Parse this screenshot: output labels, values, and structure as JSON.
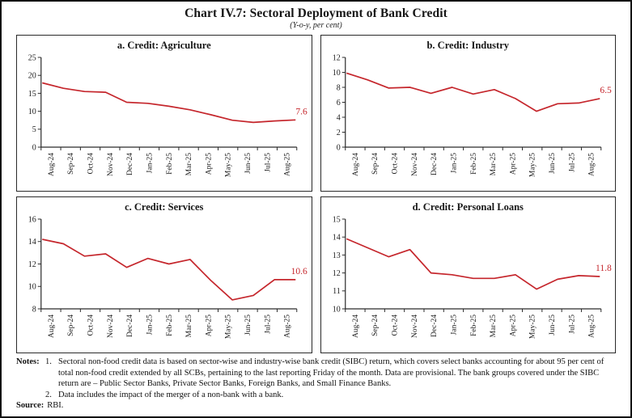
{
  "header": {
    "title": "Chart IV.7:  Sectoral Deployment of Bank Credit",
    "subtitle": "(Y-o-y, per cent)"
  },
  "colors": {
    "line_red": "#c5262c",
    "axis": "#2b2b2b",
    "border": "#121212"
  },
  "chart_data": [
    {
      "type": "line",
      "title": "a. Credit: Agriculture",
      "categories": [
        "Aug-24",
        "Sep-24",
        "Oct-24",
        "Nov-24",
        "Dec-24",
        "Jan-25",
        "Feb-25",
        "Mar-25",
        "Apr-25",
        "May-25",
        "Jun-25",
        "Jul-25",
        "Aug-25"
      ],
      "values": [
        17.9,
        16.4,
        15.5,
        15.3,
        12.5,
        12.2,
        11.4,
        10.4,
        9.0,
        7.5,
        6.9,
        7.3,
        7.6
      ],
      "ylim": [
        0,
        25
      ],
      "yticks": [
        0,
        5,
        10,
        15,
        20,
        25
      ],
      "end_label": "7.6",
      "line_color": "#c5262c",
      "legend": "none",
      "grid": "off"
    },
    {
      "type": "line",
      "title": "b. Credit: Industry",
      "categories": [
        "Aug-24",
        "Sep-24",
        "Oct-24",
        "Nov-24",
        "Dec-24",
        "Jan-25",
        "Feb-25",
        "Mar-25",
        "Apr-25",
        "May-25",
        "Jun-25",
        "Jul-25",
        "Aug-25"
      ],
      "values": [
        9.9,
        9.0,
        7.9,
        8.0,
        7.2,
        8.0,
        7.1,
        7.7,
        6.5,
        4.8,
        5.8,
        5.9,
        6.5
      ],
      "ylim": [
        0,
        12
      ],
      "yticks": [
        0,
        2,
        4,
        6,
        8,
        10,
        12
      ],
      "end_label": "6.5",
      "line_color": "#c5262c",
      "legend": "none",
      "grid": "off"
    },
    {
      "type": "line",
      "title": "c. Credit: Services",
      "categories": [
        "Aug-24",
        "Sep-24",
        "Oct-24",
        "Nov-24",
        "Dec-24",
        "Jan-25",
        "Feb-25",
        "Mar-25",
        "Apr-25",
        "May-25",
        "Jun-25",
        "Jul-25",
        "Aug-25"
      ],
      "values": [
        14.2,
        13.8,
        12.7,
        12.9,
        11.7,
        12.5,
        12.0,
        12.4,
        10.5,
        8.8,
        9.2,
        10.6,
        10.6
      ],
      "ylim": [
        8,
        16
      ],
      "yticks": [
        8,
        10,
        12,
        14,
        16
      ],
      "end_label": "10.6",
      "line_color": "#c5262c",
      "legend": "none",
      "grid": "off"
    },
    {
      "type": "line",
      "title": "d. Credit: Personal Loans",
      "categories": [
        "Aug-24",
        "Sep-24",
        "Oct-24",
        "Nov-24",
        "Dec-24",
        "Jan-25",
        "Feb-25",
        "Mar-25",
        "Apr-25",
        "May-25",
        "Jun-25",
        "Jul-25",
        "Aug-25"
      ],
      "values": [
        13.9,
        13.4,
        12.9,
        13.3,
        12.0,
        11.9,
        11.7,
        11.7,
        11.9,
        11.1,
        11.65,
        11.85,
        11.8
      ],
      "ylim": [
        10,
        15
      ],
      "yticks": [
        10,
        11,
        12,
        13,
        14,
        15
      ],
      "end_label": "11.8",
      "line_color": "#c5262c",
      "legend": "none",
      "grid": "off"
    }
  ],
  "notes": {
    "label": "Notes:",
    "items": [
      {
        "num": "1.",
        "text": "Sectoral non-food credit data is based on sector-wise and industry-wise bank credit (SIBC) return, which covers select banks accounting for about 95 per cent of total non-food credit extended by all SCBs, pertaining to the last reporting Friday of the month. Data are provisional. The bank groups covered under the SIBC return are – Public Sector Banks, Private Sector Banks, Foreign Banks, and Small Finance Banks."
      },
      {
        "num": "2.",
        "text": "Data includes the impact of the merger of a non-bank with a bank."
      }
    ],
    "source_label": "Source:",
    "source_text": "RBI."
  }
}
